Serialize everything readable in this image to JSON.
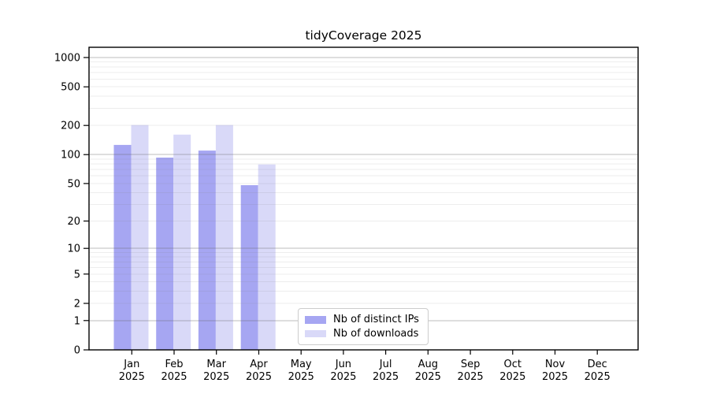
{
  "page": {
    "background_color": "#ffffff"
  },
  "chart_data": {
    "type": "bar",
    "title": "tidyCoverage 2025",
    "xlabel": "",
    "ylabel": "",
    "year": "2025",
    "categories": [
      "Jan",
      "Feb",
      "Mar",
      "Apr",
      "May",
      "Jun",
      "Jul",
      "Aug",
      "Sep",
      "Oct",
      "Nov",
      "Dec"
    ],
    "series": [
      {
        "name": "Nb of distinct IPs",
        "color": "#a6a6f2",
        "values": [
          126,
          93,
          110,
          48,
          0,
          0,
          0,
          0,
          0,
          0,
          0,
          0
        ]
      },
      {
        "name": "Nb of downloads",
        "color": "#d9d9f8",
        "values": [
          202,
          161,
          202,
          79,
          0,
          0,
          0,
          0,
          0,
          0,
          0,
          0
        ]
      }
    ],
    "y_ticks": [
      0,
      1,
      2,
      5,
      10,
      20,
      50,
      100,
      200,
      500,
      1000
    ],
    "y_scale": "log1p",
    "ylim": [
      0,
      1000
    ],
    "grid": "both",
    "grid_minor_color": "rgba(128,128,128,0.14)",
    "grid_major_color": "rgba(100,100,100,0.42)",
    "axis_color": "#000000",
    "legend_position": "inside-bottom-center",
    "legend_border_color": "#cccccc"
  }
}
